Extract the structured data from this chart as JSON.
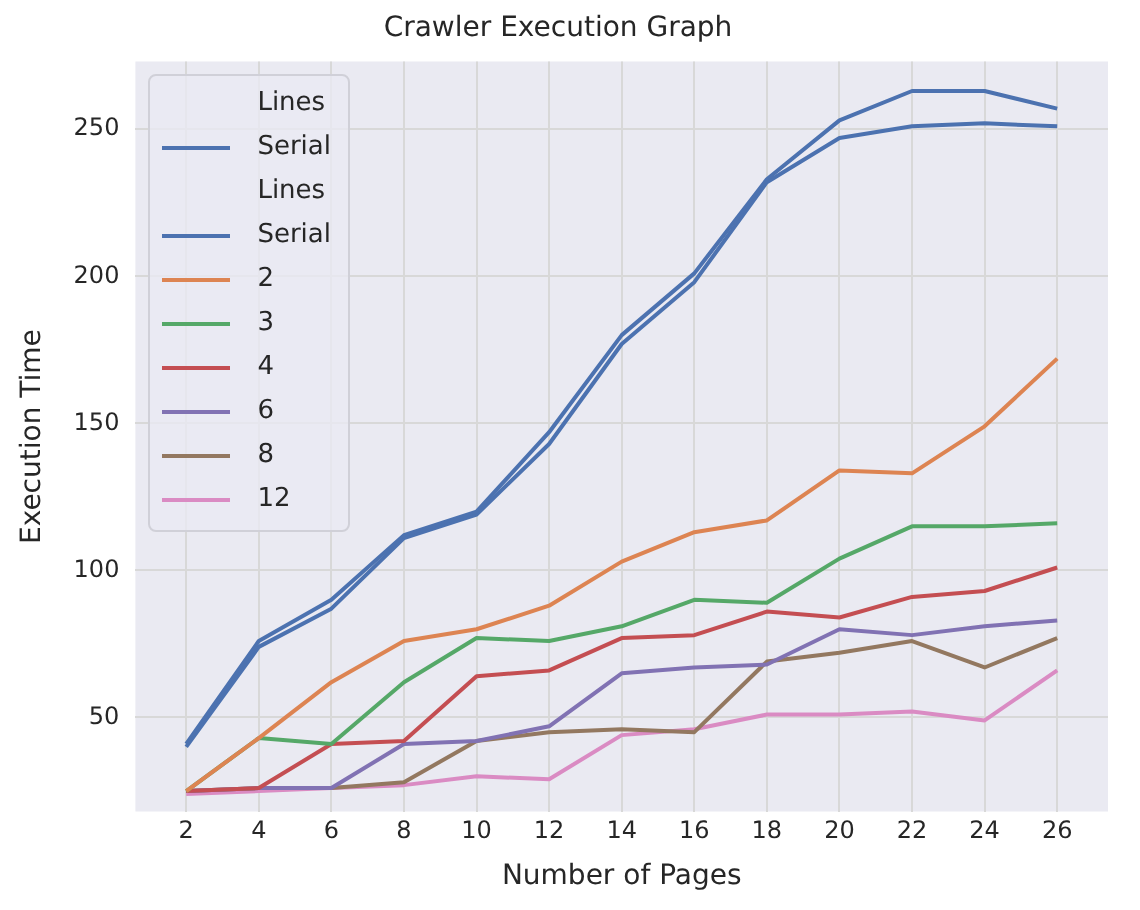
{
  "chart_data": {
    "type": "line",
    "title": "Crawler Execution Graph",
    "xlabel": "Number of Pages",
    "ylabel": "Execution Time",
    "legend_title": "Lines",
    "annotations": [
      "Lines"
    ],
    "x": [
      2,
      4,
      6,
      8,
      10,
      12,
      14,
      16,
      18,
      20,
      22,
      24,
      26
    ],
    "xlim": [
      0.6,
      27.4
    ],
    "xticks": [
      2,
      4,
      6,
      8,
      10,
      12,
      14,
      16,
      18,
      20,
      22,
      24,
      26
    ],
    "ylim": [
      18,
      273
    ],
    "yticks": [
      50,
      100,
      150,
      200,
      250
    ],
    "grid": true,
    "legend": "top left",
    "line_style": "solid",
    "marker": "none",
    "series": [
      {
        "name": "Serial",
        "color": "#4c72b0",
        "values": [
          41,
          76,
          90,
          112,
          120,
          147,
          180,
          201,
          233,
          253,
          263,
          263,
          257
        ]
      },
      {
        "name": "Serial",
        "color": "#4c72b0",
        "values": [
          40,
          74,
          87,
          111,
          119,
          143,
          177,
          198,
          232,
          247,
          251,
          252,
          251
        ]
      },
      {
        "name": "2",
        "color": "#dd8452",
        "values": [
          25,
          43,
          62,
          76,
          80,
          88,
          103,
          113,
          117,
          134,
          133,
          149,
          172
        ]
      },
      {
        "name": "3",
        "color": "#55a868",
        "values": [
          25,
          43,
          41,
          62,
          77,
          76,
          81,
          90,
          89,
          104,
          115,
          115,
          116
        ]
      },
      {
        "name": "4",
        "color": "#c44e52",
        "values": [
          25,
          26,
          41,
          42,
          64,
          66,
          77,
          78,
          86,
          84,
          91,
          93,
          101
        ]
      },
      {
        "name": "6",
        "color": "#8172b3",
        "values": [
          25,
          26,
          26,
          41,
          42,
          47,
          65,
          67,
          68,
          80,
          78,
          81,
          83
        ]
      },
      {
        "name": "8",
        "color": "#937860",
        "values": [
          25,
          26,
          26,
          28,
          42,
          45,
          46,
          45,
          69,
          72,
          76,
          67,
          77
        ]
      },
      {
        "name": "12",
        "color": "#da8bc3",
        "values": [
          24,
          25,
          26,
          27,
          30,
          29,
          44,
          46,
          51,
          51,
          52,
          49,
          66
        ]
      }
    ]
  }
}
